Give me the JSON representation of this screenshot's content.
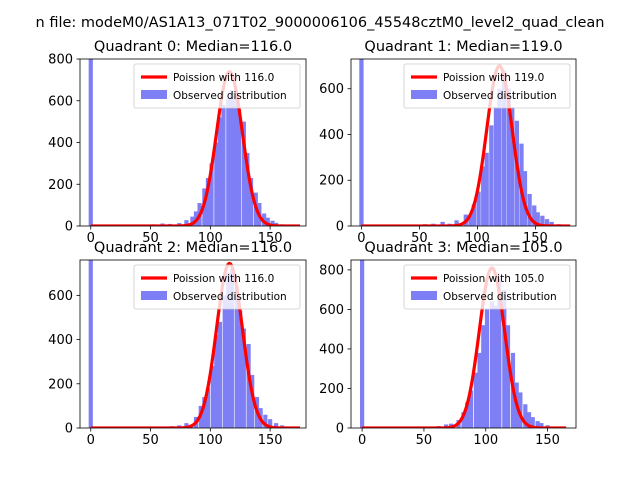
{
  "figure": {
    "suptitle": "n file: modeM0/AS1A13_071T02_9000006106_45548cztM0_level2_quad_clean"
  },
  "colors": {
    "observed": "#7f7ff5",
    "poisson": "#ff0000",
    "axis": "#000000"
  },
  "chart_data": [
    {
      "type": "bar",
      "title": "Quadrant 0: Median=116.0",
      "median": 116.0,
      "xlim": [
        -9,
        180
      ],
      "ylim": [
        0,
        800
      ],
      "xticks": [
        0,
        50,
        100,
        150
      ],
      "yticks": [
        0,
        200,
        400,
        600,
        800
      ],
      "bin_width": 3.5,
      "bins": [
        {
          "x": 0,
          "y": 800
        },
        {
          "x": 42,
          "y": 3
        },
        {
          "x": 52,
          "y": 8
        },
        {
          "x": 60,
          "y": 12
        },
        {
          "x": 66,
          "y": 10
        },
        {
          "x": 74,
          "y": 14
        },
        {
          "x": 80,
          "y": 28
        },
        {
          "x": 85,
          "y": 45
        },
        {
          "x": 88,
          "y": 70
        },
        {
          "x": 91,
          "y": 110
        },
        {
          "x": 95,
          "y": 180
        },
        {
          "x": 98,
          "y": 230
        },
        {
          "x": 101,
          "y": 300
        },
        {
          "x": 105,
          "y": 400
        },
        {
          "x": 108,
          "y": 520
        },
        {
          "x": 111,
          "y": 580
        },
        {
          "x": 115,
          "y": 610
        },
        {
          "x": 118,
          "y": 650
        },
        {
          "x": 121,
          "y": 620
        },
        {
          "x": 124,
          "y": 560
        },
        {
          "x": 128,
          "y": 500
        },
        {
          "x": 131,
          "y": 350
        },
        {
          "x": 134,
          "y": 230
        },
        {
          "x": 138,
          "y": 160
        },
        {
          "x": 141,
          "y": 110
        },
        {
          "x": 145,
          "y": 60
        },
        {
          "x": 148,
          "y": 40
        },
        {
          "x": 152,
          "y": 25
        },
        {
          "x": 155,
          "y": 15
        },
        {
          "x": 160,
          "y": 8
        },
        {
          "x": 166,
          "y": 4
        },
        {
          "x": 173,
          "y": 2
        }
      ],
      "series": [
        {
          "name": "Poission with 116.0",
          "kind": "poisson",
          "lambda": 116.0,
          "peak": 740,
          "x_range": [
            0,
            175
          ]
        },
        {
          "name": "Observed distribution",
          "kind": "histogram"
        }
      ],
      "legend": "upper right"
    },
    {
      "type": "bar",
      "title": "Quadrant 1: Median=119.0",
      "median": 119.0,
      "xlim": [
        -9,
        185
      ],
      "ylim": [
        0,
        730
      ],
      "xticks": [
        0,
        50,
        100,
        150
      ],
      "yticks": [
        0,
        200,
        400,
        600
      ],
      "bin_width": 3.7,
      "bins": [
        {
          "x": 0,
          "y": 730
        },
        {
          "x": 55,
          "y": 8
        },
        {
          "x": 62,
          "y": 10
        },
        {
          "x": 70,
          "y": 18
        },
        {
          "x": 76,
          "y": 10
        },
        {
          "x": 82,
          "y": 25
        },
        {
          "x": 90,
          "y": 50
        },
        {
          "x": 94,
          "y": 45
        },
        {
          "x": 97,
          "y": 95
        },
        {
          "x": 101,
          "y": 150
        },
        {
          "x": 105,
          "y": 260
        },
        {
          "x": 108,
          "y": 320
        },
        {
          "x": 112,
          "y": 440
        },
        {
          "x": 116,
          "y": 520
        },
        {
          "x": 119,
          "y": 600
        },
        {
          "x": 123,
          "y": 680
        },
        {
          "x": 127,
          "y": 600
        },
        {
          "x": 130,
          "y": 520
        },
        {
          "x": 134,
          "y": 460
        },
        {
          "x": 138,
          "y": 360
        },
        {
          "x": 141,
          "y": 240
        },
        {
          "x": 145,
          "y": 140
        },
        {
          "x": 149,
          "y": 90
        },
        {
          "x": 152,
          "y": 60
        },
        {
          "x": 156,
          "y": 45
        },
        {
          "x": 160,
          "y": 30
        },
        {
          "x": 164,
          "y": 18
        },
        {
          "x": 170,
          "y": 8
        }
      ],
      "series": [
        {
          "name": "Poission with 119.0",
          "kind": "poisson",
          "lambda": 119.0,
          "peak": 700,
          "x_range": [
            0,
            180
          ]
        },
        {
          "name": "Observed distribution",
          "kind": "histogram"
        }
      ],
      "legend": "upper right"
    },
    {
      "type": "bar",
      "title": "Quadrant 2: Median=116.0",
      "median": 116.0,
      "xlim": [
        -9,
        180
      ],
      "ylim": [
        0,
        760
      ],
      "xticks": [
        0,
        50,
        100,
        150
      ],
      "yticks": [
        0,
        200,
        400,
        600
      ],
      "bin_width": 3.5,
      "bins": [
        {
          "x": 0,
          "y": 760
        },
        {
          "x": 50,
          "y": 3
        },
        {
          "x": 60,
          "y": 5
        },
        {
          "x": 68,
          "y": 8
        },
        {
          "x": 74,
          "y": 12
        },
        {
          "x": 80,
          "y": 22
        },
        {
          "x": 84,
          "y": 15
        },
        {
          "x": 88,
          "y": 50
        },
        {
          "x": 92,
          "y": 100
        },
        {
          "x": 95,
          "y": 140
        },
        {
          "x": 98,
          "y": 180
        },
        {
          "x": 102,
          "y": 280
        },
        {
          "x": 105,
          "y": 420
        },
        {
          "x": 108,
          "y": 480
        },
        {
          "x": 112,
          "y": 600
        },
        {
          "x": 115,
          "y": 700
        },
        {
          "x": 118,
          "y": 720
        },
        {
          "x": 122,
          "y": 640
        },
        {
          "x": 125,
          "y": 530
        },
        {
          "x": 128,
          "y": 450
        },
        {
          "x": 132,
          "y": 380
        },
        {
          "x": 135,
          "y": 240
        },
        {
          "x": 139,
          "y": 140
        },
        {
          "x": 142,
          "y": 90
        },
        {
          "x": 146,
          "y": 60
        },
        {
          "x": 150,
          "y": 40
        },
        {
          "x": 155,
          "y": 22
        },
        {
          "x": 160,
          "y": 12
        },
        {
          "x": 168,
          "y": 5
        }
      ],
      "series": [
        {
          "name": "Poission with 116.0",
          "kind": "poisson",
          "lambda": 116.0,
          "peak": 745,
          "x_range": [
            0,
            175
          ]
        },
        {
          "name": "Observed distribution",
          "kind": "histogram"
        }
      ],
      "legend": "upper right"
    },
    {
      "type": "bar",
      "title": "Quadrant 3: Median=105.0",
      "median": 105.0,
      "xlim": [
        -9,
        173
      ],
      "ylim": [
        0,
        850
      ],
      "xticks": [
        0,
        50,
        100,
        150
      ],
      "yticks": [
        0,
        200,
        400,
        600,
        800
      ],
      "bin_width": 3.4,
      "bins": [
        {
          "x": 0,
          "y": 850
        },
        {
          "x": 45,
          "y": 3
        },
        {
          "x": 55,
          "y": 6
        },
        {
          "x": 62,
          "y": 10
        },
        {
          "x": 68,
          "y": 18
        },
        {
          "x": 72,
          "y": 22
        },
        {
          "x": 78,
          "y": 40
        },
        {
          "x": 82,
          "y": 80
        },
        {
          "x": 85,
          "y": 130
        },
        {
          "x": 88,
          "y": 190
        },
        {
          "x": 92,
          "y": 280
        },
        {
          "x": 95,
          "y": 380
        },
        {
          "x": 98,
          "y": 520
        },
        {
          "x": 101,
          "y": 600
        },
        {
          "x": 105,
          "y": 640
        },
        {
          "x": 108,
          "y": 620
        },
        {
          "x": 111,
          "y": 760
        },
        {
          "x": 115,
          "y": 700
        },
        {
          "x": 118,
          "y": 520
        },
        {
          "x": 122,
          "y": 380
        },
        {
          "x": 125,
          "y": 230
        },
        {
          "x": 128,
          "y": 180
        },
        {
          "x": 132,
          "y": 120
        },
        {
          "x": 135,
          "y": 80
        },
        {
          "x": 138,
          "y": 55
        },
        {
          "x": 142,
          "y": 35
        },
        {
          "x": 145,
          "y": 25
        },
        {
          "x": 150,
          "y": 14
        },
        {
          "x": 156,
          "y": 7
        },
        {
          "x": 162,
          "y": 3
        }
      ],
      "series": [
        {
          "name": "Poission with 105.0",
          "kind": "poisson",
          "lambda": 105.0,
          "peak": 810,
          "x_range": [
            0,
            165
          ]
        },
        {
          "name": "Observed distribution",
          "kind": "histogram"
        }
      ],
      "legend": "upper right"
    }
  ]
}
